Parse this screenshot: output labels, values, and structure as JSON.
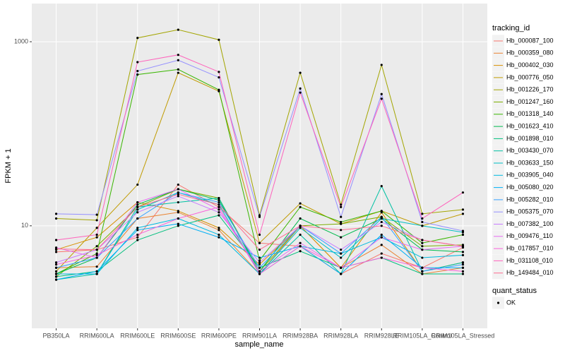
{
  "chart_data": {
    "type": "line",
    "x_label": "sample_name",
    "y_label": "FPKM + 1",
    "log_y": true,
    "grid": true,
    "legend_title": "tracking_id",
    "legend_position": "right",
    "point_legend_title": "quant_status",
    "point_legend_label": "OK",
    "point_color": "#000000",
    "categories": [
      "PB350LA",
      "RRIM600LA",
      "RRIM600LE",
      "RRIM600SE",
      "RRIM600PE",
      "RRIM901LA",
      "RRIM928BA",
      "RRIM928LA",
      "RRIM928LE",
      "RRIM105LA_Control",
      "RRIM105LA_Stressed"
    ],
    "ylim": [
      0.77,
      2600
    ],
    "yticks": [
      10,
      1000
    ],
    "series": [
      {
        "name": "Hb_000087_100",
        "color": "#F8766D",
        "values": [
          5.2,
          5.5,
          7.5,
          28,
          16,
          6.5,
          6,
          3,
          5,
          3.5,
          5.8
        ]
      },
      {
        "name": "Hb_000359_080",
        "color": "#EA8331",
        "values": [
          3.5,
          3.6,
          12,
          14,
          9,
          3,
          10,
          3.5,
          6.2,
          3,
          3.5
        ]
      },
      {
        "name": "Hb_000402_030",
        "color": "#D89000",
        "values": [
          5.5,
          7.5,
          18,
          14.5,
          9.5,
          3.8,
          10,
          3.5,
          14,
          3.2,
          4
        ]
      },
      {
        "name": "Hb_000776_050",
        "color": "#C09B00",
        "values": [
          3.2,
          9.5,
          28,
          460,
          290,
          6.5,
          17.5,
          10.5,
          14.5,
          10,
          13.5
        ]
      },
      {
        "name": "Hb_001226_170",
        "color": "#A3A500",
        "values": [
          12,
          11.5,
          1100,
          1350,
          1050,
          13,
          460,
          17,
          560,
          13.5,
          15
        ]
      },
      {
        "name": "Hb_001247_160",
        "color": "#7CAE00",
        "values": [
          2.8,
          6,
          16,
          25,
          20,
          3.2,
          10,
          10.5,
          12.5,
          6,
          6.2
        ]
      },
      {
        "name": "Hb_001318_140",
        "color": "#39B600",
        "values": [
          3,
          5,
          440,
          500,
          300,
          4.2,
          16,
          11,
          14.5,
          6.5,
          8
        ]
      },
      {
        "name": "Hb_001623_410",
        "color": "#00BB4E",
        "values": [
          3,
          4.5,
          17,
          25,
          19,
          3.2,
          12,
          7.5,
          12,
          5.5,
          5.2
        ]
      },
      {
        "name": "Hb_001898_010",
        "color": "#00BF7D",
        "values": [
          2.8,
          3.2,
          7,
          10,
          13,
          3.5,
          5.3,
          3.5,
          4.5,
          3,
          3
        ]
      },
      {
        "name": "Hb_003430_070",
        "color": "#00C1A3",
        "values": [
          2.6,
          3,
          16,
          18,
          20,
          3,
          8,
          3,
          27,
          3.2,
          4
        ]
      },
      {
        "name": "Hb_003633_150",
        "color": "#00BFC4",
        "values": [
          3,
          3,
          15,
          23,
          17,
          3,
          9.5,
          4.5,
          12,
          10,
          8.5
        ]
      },
      {
        "name": "Hb_003905_040",
        "color": "#00BAE0",
        "values": [
          3,
          3,
          9.5,
          12,
          8,
          3,
          6,
          5,
          7.5,
          4.5,
          4.8
        ]
      },
      {
        "name": "Hb_005080_020",
        "color": "#00B0F6",
        "values": [
          2.6,
          3.2,
          9,
          10.5,
          7.5,
          4.5,
          6,
          3,
          8,
          3.5,
          3.5
        ]
      },
      {
        "name": "Hb_005282_010",
        "color": "#35A2FF",
        "values": [
          3.5,
          4.5,
          12,
          23,
          18,
          3.5,
          10,
          5,
          12.5,
          3.2,
          3.8
        ]
      },
      {
        "name": "Hb_005375_070",
        "color": "#9590FF",
        "values": [
          13.5,
          13.2,
          480,
          630,
          410,
          12.5,
          310,
          12.5,
          270,
          11,
          8.8
        ]
      },
      {
        "name": "Hb_007382_100",
        "color": "#C77CFF",
        "values": [
          4,
          5.5,
          14,
          21,
          14,
          4,
          10,
          5.5,
          11,
          7,
          6
        ]
      },
      {
        "name": "Hb_009476_110",
        "color": "#E76BF3",
        "values": [
          5.8,
          4.5,
          18,
          25,
          15,
          3.2,
          6.5,
          3.5,
          7.5,
          5.5,
          6
        ]
      },
      {
        "name": "Hb_017857_010",
        "color": "#FA62DB",
        "values": [
          3.8,
          4.8,
          8,
          12,
          16,
          3,
          6,
          3.5,
          4.5,
          3.5,
          3.2
        ]
      },
      {
        "name": "Hb_031108_010",
        "color": "#FF62BC",
        "values": [
          7,
          8,
          600,
          720,
          470,
          8,
          280,
          16,
          240,
          12,
          23
        ]
      },
      {
        "name": "Hb_149484_010",
        "color": "#FF6C91",
        "values": [
          5.6,
          5.5,
          16,
          22,
          17,
          5.5,
          10,
          9,
          10,
          7,
          6
        ]
      }
    ]
  }
}
